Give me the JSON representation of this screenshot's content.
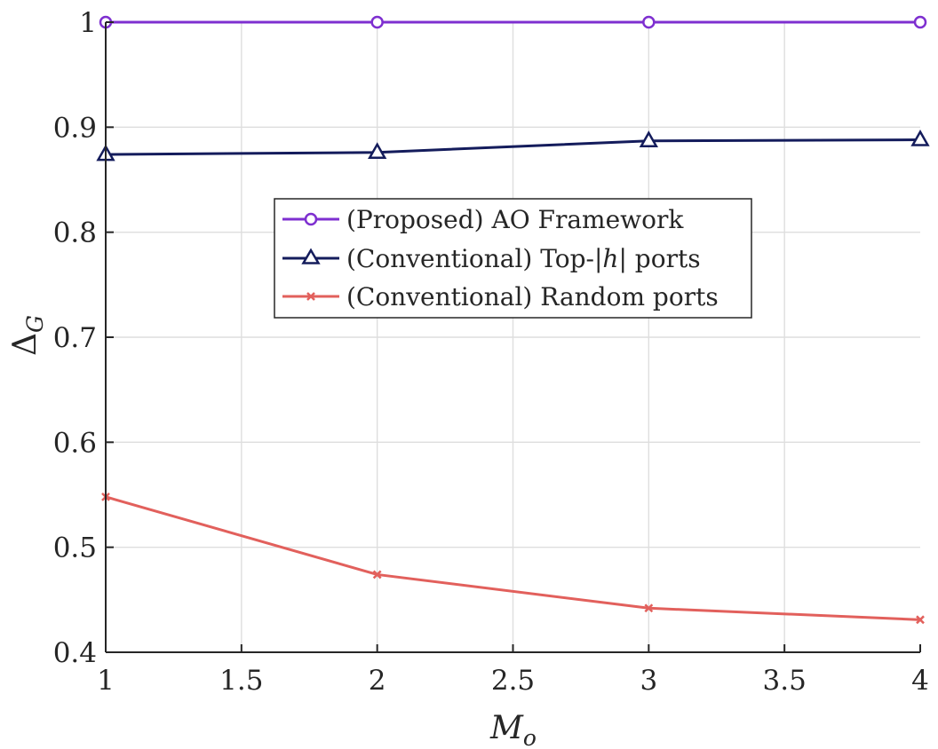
{
  "chart_data": {
    "type": "line",
    "title": "",
    "xlabel": "M_o",
    "xlabel_main": "M",
    "xlabel_sub": "o",
    "ylabel": "Δ_G",
    "ylabel_main": "Δ",
    "ylabel_sub": "G",
    "xlim": [
      1,
      4
    ],
    "ylim": [
      0.4,
      1.0
    ],
    "xticks": [
      1,
      1.5,
      2,
      2.5,
      3,
      3.5,
      4
    ],
    "xtick_labels": [
      "1",
      "1.5",
      "2",
      "2.5",
      "3",
      "3.5",
      "4"
    ],
    "yticks": [
      0.4,
      0.5,
      0.6,
      0.7,
      0.8,
      0.9,
      1.0
    ],
    "ytick_labels": [
      "0.4",
      "0.5",
      "0.6",
      "0.7",
      "0.8",
      "0.9",
      "1"
    ],
    "grid": true,
    "legend_position": "center",
    "x": [
      1,
      2,
      3,
      4
    ],
    "series": [
      {
        "name": "(Proposed) AO Framework",
        "values": [
          1.0,
          1.0,
          1.0,
          1.0
        ],
        "color": "#7e2fd0",
        "marker": "circle"
      },
      {
        "name": "(Conventional) Top-|h| ports",
        "legend_prefix": "(Conventional) Top-|",
        "legend_var": "h",
        "legend_suffix": "| ports",
        "values": [
          0.874,
          0.876,
          0.887,
          0.888
        ],
        "color": "#141c5c",
        "marker": "triangle"
      },
      {
        "name": "(Conventional) Random ports",
        "values": [
          0.548,
          0.474,
          0.442,
          0.431
        ],
        "color": "#e2605c",
        "marker": "x"
      }
    ]
  }
}
